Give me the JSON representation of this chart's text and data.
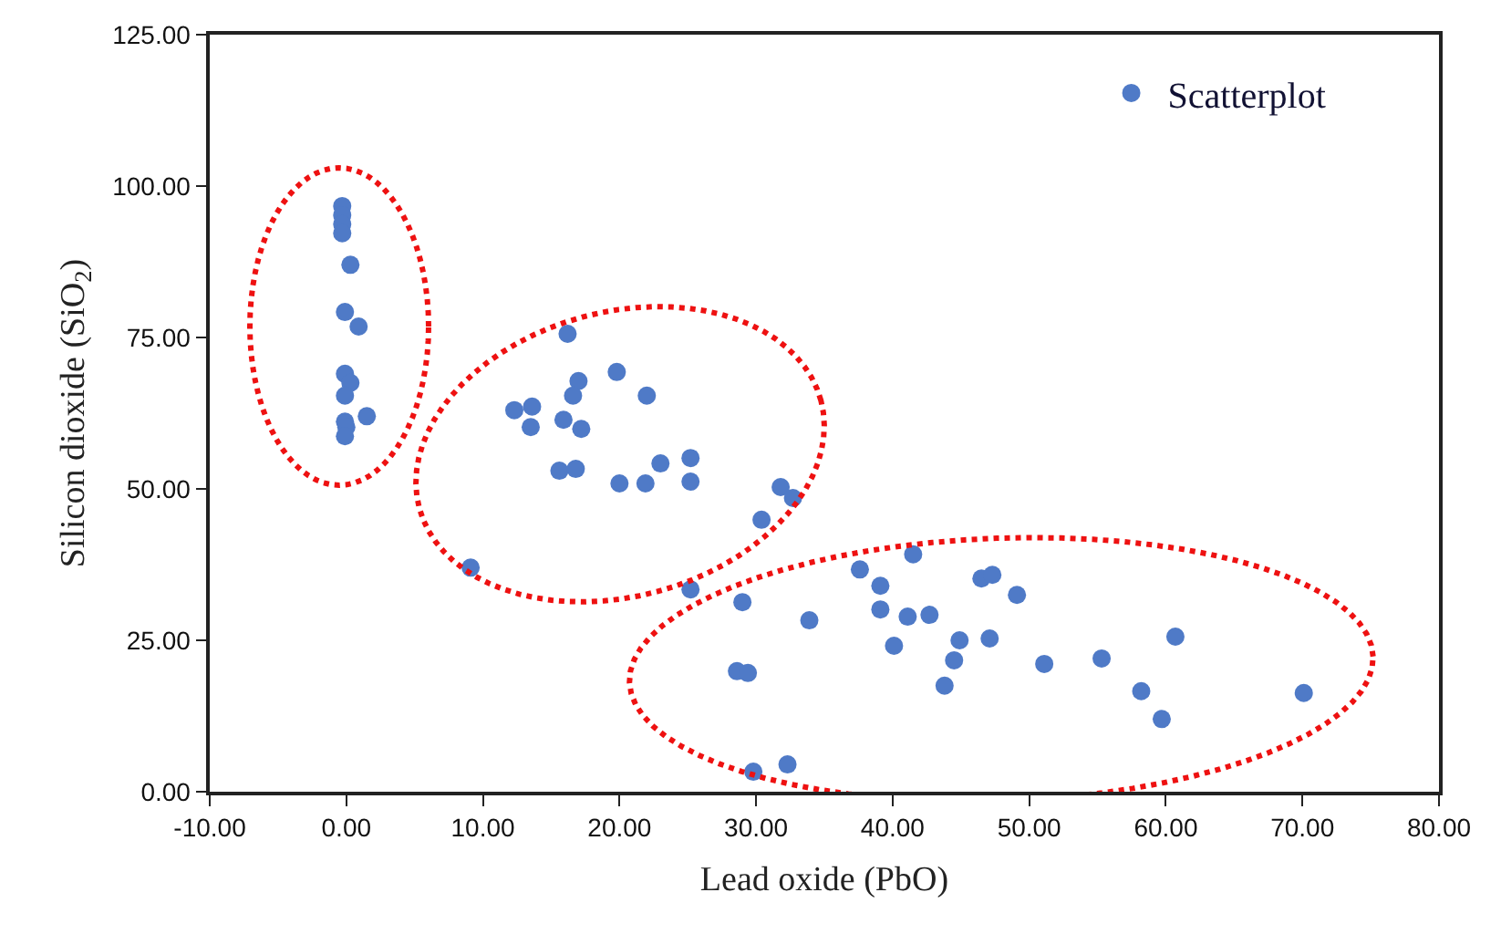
{
  "chart_data": {
    "type": "scatter",
    "xlabel": "Lead oxide (PbO)",
    "ylabel": "Silicon dioxide (SiO$_{2}$)",
    "xlim": [
      -10,
      80
    ],
    "ylim": [
      0,
      125
    ],
    "xticks": [
      {
        "value": -10,
        "label": "-10.00"
      },
      {
        "value": 0,
        "label": "0.00"
      },
      {
        "value": 10,
        "label": "10.00"
      },
      {
        "value": 20,
        "label": "20.00"
      },
      {
        "value": 30,
        "label": "30.00"
      },
      {
        "value": 40,
        "label": "40.00"
      },
      {
        "value": 50,
        "label": "50.00"
      },
      {
        "value": 60,
        "label": "60.00"
      },
      {
        "value": 70,
        "label": "70.00"
      },
      {
        "value": 80,
        "label": "80.00"
      }
    ],
    "yticks": [
      {
        "value": 0,
        "label": "0.00"
      },
      {
        "value": 25,
        "label": "25.00"
      },
      {
        "value": 50,
        "label": "50.00"
      },
      {
        "value": 75,
        "label": "75.00"
      },
      {
        "value": 100,
        "label": "100.00"
      },
      {
        "value": 125,
        "label": "125.00"
      }
    ],
    "legend": "top right",
    "marker": "circle",
    "series": [
      {
        "name": "Scatterplot",
        "color": "#4f7ac7",
        "x": [
          -0.3,
          -0.3,
          -0.3,
          -0.3,
          0.3,
          -0.1,
          0.9,
          -0.1,
          0.3,
          -0.1,
          -0.1,
          1.5,
          0.0,
          -0.1,
          16.2,
          19.8,
          17.0,
          16.6,
          22.0,
          12.3,
          13.6,
          13.5,
          15.9,
          17.2,
          25.2,
          23.0,
          15.6,
          16.8,
          20.0,
          21.9,
          25.2,
          31.8,
          32.7,
          30.4,
          9.1,
          25.2,
          29.0,
          33.9,
          37.6,
          41.5,
          39.1,
          39.1,
          41.1,
          42.7,
          40.1,
          44.9,
          44.5,
          43.8,
          28.6,
          29.4,
          32.3,
          29.8,
          46.5,
          47.3,
          49.1,
          47.1,
          51.1,
          55.3,
          58.2,
          59.7,
          60.7,
          70.1
        ],
        "values": [
          96.7,
          95.2,
          93.7,
          92.2,
          87.0,
          79.2,
          76.8,
          69.0,
          67.5,
          65.4,
          61.1,
          62.0,
          60.2,
          58.7,
          75.6,
          69.3,
          67.8,
          65.4,
          65.4,
          63.0,
          63.6,
          60.2,
          61.4,
          59.9,
          55.1,
          54.2,
          53.0,
          53.3,
          50.9,
          50.9,
          51.2,
          50.3,
          48.5,
          44.9,
          37.0,
          33.4,
          31.3,
          28.3,
          36.7,
          39.2,
          34.0,
          30.1,
          28.9,
          29.2,
          24.1,
          25.0,
          21.7,
          17.5,
          19.9,
          19.6,
          4.5,
          3.3,
          35.2,
          35.8,
          32.5,
          25.3,
          21.1,
          22.0,
          16.6,
          12.0,
          25.6,
          16.3
        ]
      }
    ]
  }
}
